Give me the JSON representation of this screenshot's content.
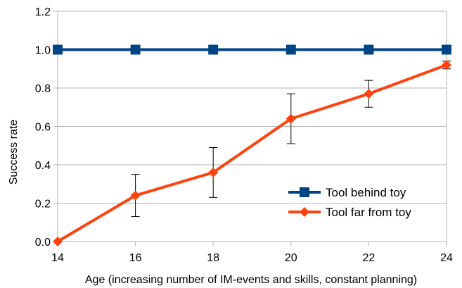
{
  "chart_data": {
    "type": "line",
    "title": "",
    "xlabel": "Age (increasing number of IM-events and skills, constant planning)",
    "ylabel": "Success rate",
    "x": [
      14,
      16,
      18,
      20,
      22,
      24
    ],
    "xlim": [
      14,
      24
    ],
    "ylim": [
      0,
      1.2
    ],
    "x_ticks": [
      "14",
      "16",
      "18",
      "20",
      "22",
      "24"
    ],
    "y_ticks": [
      "0.0",
      "0.2",
      "0.4",
      "0.6",
      "0.8",
      "1.0",
      "1.2"
    ],
    "grid": "horizontal",
    "legend_position": "bottom-right",
    "series": [
      {
        "name": "Tool behind toy",
        "color": "#004586",
        "marker": "square",
        "values": [
          1.0,
          1.0,
          1.0,
          1.0,
          1.0,
          1.0
        ]
      },
      {
        "name": "Tool far from toy",
        "color": "#ff420e",
        "marker": "diamond",
        "values": [
          0.0,
          0.24,
          0.36,
          0.64,
          0.77,
          0.92
        ],
        "error": [
          0.0,
          0.11,
          0.13,
          0.13,
          0.07,
          0.02
        ]
      }
    ]
  }
}
